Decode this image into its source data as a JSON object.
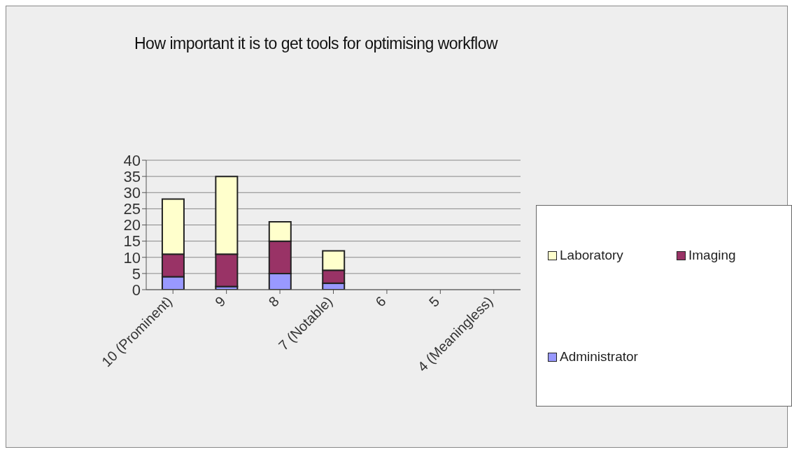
{
  "chart_data": {
    "type": "bar",
    "title": "How important it is to get tools for optimising workflow",
    "categories": [
      "10 (Prominent)",
      "9",
      "8",
      "7 (Notable)",
      "6",
      "5",
      "4 (Meaningless)"
    ],
    "stacked": true,
    "series": [
      {
        "name": "Administrator",
        "color": "#9999ff",
        "values": [
          4,
          1,
          5,
          2,
          0,
          0,
          0
        ]
      },
      {
        "name": "Imaging",
        "color": "#993366",
        "values": [
          7,
          10,
          10,
          4,
          0,
          0,
          0
        ]
      },
      {
        "name": "Laboratory",
        "color": "#ffffcc",
        "values": [
          17,
          24,
          6,
          6,
          0,
          0,
          0
        ]
      }
    ],
    "ylim": [
      0,
      40
    ],
    "yticks": [
      0,
      5,
      10,
      15,
      20,
      25,
      30,
      35,
      40
    ],
    "grid": "y",
    "legend": "right"
  }
}
